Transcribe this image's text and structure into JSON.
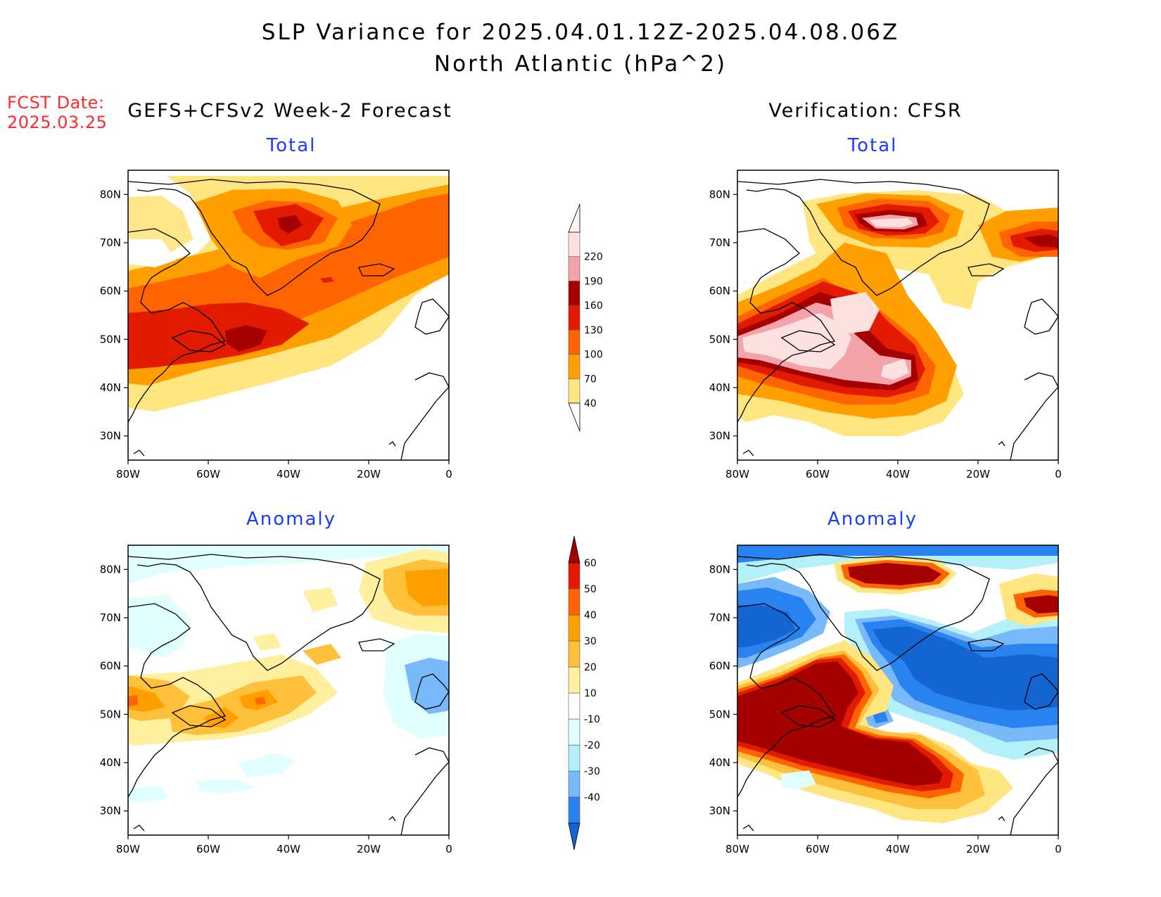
{
  "header": {
    "title_line1": "SLP Variance for 2025.04.01.12Z-2025.04.08.06Z",
    "title_line2": "North Atlantic (hPa^2)"
  },
  "fcst": {
    "line1": "FCST Date:",
    "line2": "2025.03.25"
  },
  "columns": {
    "left": "GEFS+CFSv2 Week-2 Forecast",
    "right": "Verification: CFSR"
  },
  "panels": {
    "top_left_title": "Total",
    "top_right_title": "Total",
    "bottom_left_title": "Anomaly",
    "bottom_right_title": "Anomaly"
  },
  "axes": {
    "lon_labels": [
      "80W",
      "60W",
      "40W",
      "20W",
      "0"
    ],
    "lat_labels": [
      "80N",
      "70N",
      "60N",
      "50N",
      "40N",
      "30N"
    ],
    "lon_range": [
      -80,
      0
    ],
    "lat_range": [
      25,
      85
    ]
  },
  "colorbars": {
    "total": {
      "labels": [
        "220",
        "190",
        "160",
        "130",
        "100",
        "70",
        "40"
      ],
      "levels": [
        40,
        70,
        100,
        130,
        160,
        190,
        220
      ],
      "colors": [
        "#ffe680",
        "#ffa000",
        "#ff6400",
        "#e11a00",
        "#a50000",
        "#f4a3a8",
        "#fde0e0"
      ]
    },
    "anomaly": {
      "labels": [
        "60",
        "50",
        "40",
        "30",
        "20",
        "10",
        "-10",
        "-20",
        "-30",
        "-40"
      ],
      "levels": [
        -40,
        -30,
        -20,
        -10,
        10,
        20,
        30,
        40,
        50,
        60
      ],
      "colors": [
        "#1464d2",
        "#2882f0",
        "#78b9fa",
        "#b4f0fa",
        "#e1ffff",
        "#ffffff",
        "#fff0a0",
        "#ffc03c",
        "#ffa000",
        "#ff6400",
        "#e11a00",
        "#a50000"
      ]
    }
  }
}
